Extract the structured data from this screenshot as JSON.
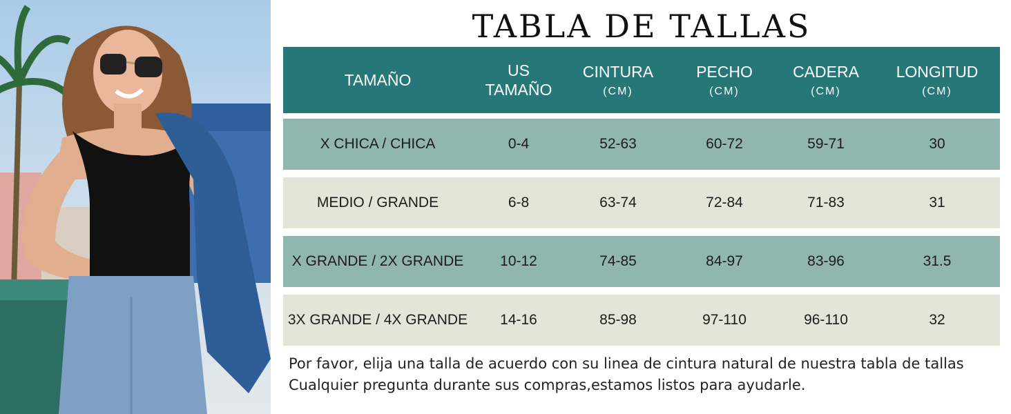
{
  "title": "TABLA DE TALLAS",
  "columns": [
    {
      "label": "TAMAÑO",
      "unit": ""
    },
    {
      "label": "US\nTAMAÑO",
      "unit": ""
    },
    {
      "label": "CINTURA",
      "unit": "(CM)"
    },
    {
      "label": "PECHO",
      "unit": "(CM)"
    },
    {
      "label": "CADERA",
      "unit": "(CM)"
    },
    {
      "label": "LONGITUD",
      "unit": "(CM)"
    }
  ],
  "rows": [
    [
      "X CHICA / CHICA",
      "0-4",
      "52-63",
      "60-72",
      "59-71",
      "30"
    ],
    [
      "MEDIO / GRANDE",
      "6-8",
      "63-74",
      "72-84",
      "71-83",
      "31"
    ],
    [
      "X GRANDE / 2X GRANDE",
      "10-12",
      "74-85",
      "84-97",
      "83-96",
      "31.5"
    ],
    [
      "3X GRANDE / 4X GRANDE",
      "14-16",
      "85-98",
      "97-110",
      "96-110",
      "32"
    ]
  ],
  "notes": [
    "Por favor, elija una talla de acuerdo con su linea de cintura natural de nuestra tabla de tallas",
    "Cualquier pregunta durante sus compras,estamos listos para ayudarle."
  ],
  "colors": {
    "header_bg": "#267878",
    "row_teal": "#91b6ae",
    "row_cream": "#e2e5d8"
  }
}
